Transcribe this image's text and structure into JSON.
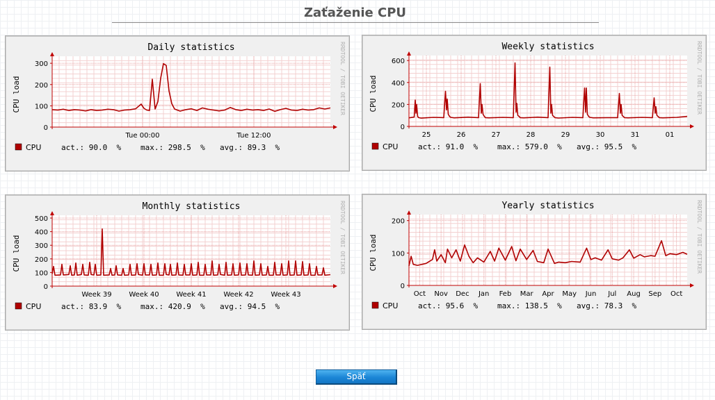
{
  "page": {
    "title": "Zaťaženie CPU"
  },
  "watermark": "RRDTOOL / TOBI OETIKER",
  "back_button": {
    "label": "Späť"
  },
  "chart_data": [
    {
      "id": "daily",
      "type": "line",
      "title": "Daily statistics",
      "ylabel": "CPU load",
      "ylim": [
        0,
        320
      ],
      "yticks": [
        0,
        100,
        200,
        300
      ],
      "xlim": [
        0,
        100
      ],
      "xticks": [
        {
          "x": 32.5,
          "label": "Tue 00:00"
        },
        {
          "x": 72.5,
          "label": "Tue 12:00"
        }
      ],
      "grid": true,
      "color": "#b00000",
      "series": [
        {
          "name": "CPU",
          "x": [
            0,
            2,
            4,
            6,
            8,
            10,
            12,
            14,
            16,
            18,
            20,
            22,
            24,
            26,
            28,
            30,
            32,
            33,
            34,
            35,
            36,
            37,
            38,
            39,
            40,
            41,
            42,
            43,
            44,
            46,
            48,
            50,
            52,
            54,
            56,
            58,
            60,
            62,
            64,
            66,
            68,
            70,
            72,
            74,
            76,
            78,
            80,
            82,
            84,
            86,
            88,
            90,
            92,
            94,
            96,
            98,
            100
          ],
          "y": [
            82,
            80,
            84,
            78,
            82,
            80,
            76,
            82,
            78,
            80,
            84,
            82,
            75,
            80,
            82,
            86,
            108,
            88,
            80,
            78,
            225,
            85,
            120,
            230,
            298,
            290,
            170,
            110,
            85,
            75,
            82,
            86,
            78,
            90,
            84,
            80,
            76,
            80,
            92,
            82,
            78,
            84,
            80,
            82,
            78,
            85,
            74,
            82,
            88,
            80,
            78,
            84,
            80,
            82,
            90,
            85,
            90
          ]
        }
      ],
      "legend": {
        "name": "CPU",
        "act": "90.0",
        "max": "298.5",
        "avg": "89.3",
        "unit": "%"
      }
    },
    {
      "id": "weekly",
      "type": "line",
      "title": "Weekly statistics",
      "ylabel": "CPU load",
      "ylim": [
        0,
        620
      ],
      "yticks": [
        0,
        200,
        400,
        600
      ],
      "xlim": [
        0,
        8
      ],
      "xticks": [
        {
          "x": 0.5,
          "label": "25"
        },
        {
          "x": 1.5,
          "label": "26"
        },
        {
          "x": 2.5,
          "label": "27"
        },
        {
          "x": 3.5,
          "label": "28"
        },
        {
          "x": 4.5,
          "label": "29"
        },
        {
          "x": 5.5,
          "label": "30"
        },
        {
          "x": 6.5,
          "label": "31"
        },
        {
          "x": 7.5,
          "label": "01"
        }
      ],
      "grid": true,
      "color": "#b00000",
      "series": [
        {
          "name": "CPU",
          "x": [
            0,
            0.15,
            0.18,
            0.2,
            0.22,
            0.25,
            0.28,
            0.35,
            0.7,
            1.0,
            1.05,
            1.08,
            1.1,
            1.13,
            1.17,
            1.2,
            1.3,
            1.7,
            2.0,
            2.05,
            2.08,
            2.1,
            2.13,
            2.17,
            2.2,
            2.3,
            2.7,
            3.0,
            3.05,
            3.08,
            3.1,
            3.13,
            3.17,
            3.2,
            3.3,
            3.7,
            4.0,
            4.05,
            4.08,
            4.1,
            4.13,
            4.17,
            4.2,
            4.3,
            4.7,
            5.0,
            5.05,
            5.08,
            5.1,
            5.13,
            5.17,
            5.2,
            5.3,
            5.7,
            6.0,
            6.05,
            6.08,
            6.1,
            6.13,
            6.17,
            6.2,
            6.3,
            6.7,
            7.0,
            7.05,
            7.08,
            7.1,
            7.13,
            7.17,
            7.2,
            7.3,
            7.7,
            8.0
          ],
          "y": [
            78,
            85,
            240,
            120,
            200,
            90,
            80,
            75,
            82,
            80,
            320,
            150,
            250,
            110,
            90,
            82,
            78,
            84,
            80,
            390,
            120,
            200,
            110,
            90,
            80,
            78,
            82,
            80,
            579,
            130,
            210,
            100,
            90,
            80,
            78,
            84,
            80,
            540,
            120,
            200,
            100,
            88,
            80,
            76,
            82,
            80,
            350,
            130,
            350,
            110,
            90,
            82,
            78,
            80,
            80,
            300,
            120,
            200,
            100,
            88,
            80,
            78,
            82,
            80,
            260,
            120,
            180,
            100,
            88,
            80,
            78,
            82,
            91
          ]
        }
      ],
      "legend": {
        "name": "CPU",
        "act": "91.0",
        "max": "579.0",
        "avg": "95.5",
        "unit": "%"
      }
    },
    {
      "id": "monthly",
      "type": "line",
      "title": "Monthly statistics",
      "ylabel": "CPU load",
      "ylim": [
        0,
        500
      ],
      "yticks": [
        0,
        100,
        200,
        300,
        400,
        500
      ],
      "xlim": [
        0,
        100
      ],
      "xticks": [
        {
          "x": 16,
          "label": "Week 39"
        },
        {
          "x": 33,
          "label": "Week 40"
        },
        {
          "x": 50,
          "label": "Week 41"
        },
        {
          "x": 67,
          "label": "Week 42"
        },
        {
          "x": 84,
          "label": "Week 43"
        }
      ],
      "grid": true,
      "color": "#b00000",
      "series": [
        {
          "name": "CPU",
          "x": [
            0,
            0.5,
            1,
            3,
            3.5,
            4,
            6,
            6.5,
            7,
            8,
            8.5,
            9,
            10.5,
            11,
            11.5,
            13,
            13.5,
            14,
            15,
            15.5,
            16,
            17.5,
            18,
            18.5,
            20.5,
            21,
            21.5,
            22.5,
            23,
            23.5,
            25,
            25.5,
            26,
            27.5,
            28,
            28.5,
            30,
            30.5,
            31,
            32.5,
            33,
            33.5,
            35,
            35.5,
            36,
            37.5,
            38,
            38.5,
            40,
            40.5,
            41,
            42,
            42.5,
            43,
            44.5,
            45,
            45.5,
            47,
            47.5,
            48,
            49.5,
            50,
            50.5,
            52,
            52.5,
            53,
            54.5,
            55,
            55.5,
            57,
            57.5,
            58,
            59.5,
            60,
            60.5,
            62,
            62.5,
            63,
            64.5,
            65,
            65.5,
            67,
            67.5,
            68,
            69.5,
            70,
            70.5,
            72,
            72.5,
            73,
            74.5,
            75,
            75.5,
            77,
            77.5,
            78,
            79.5,
            80,
            80.5,
            82,
            82.5,
            83,
            84.5,
            85,
            85.5,
            87,
            87.5,
            88,
            89.5,
            90,
            90.5,
            92,
            92.5,
            93,
            94.5,
            95,
            95.5,
            97,
            97.5,
            98,
            100
          ],
          "y": [
            90,
            145,
            80,
            82,
            160,
            82,
            85,
            150,
            80,
            82,
            170,
            80,
            85,
            160,
            82,
            80,
            175,
            85,
            82,
            160,
            80,
            82,
            420,
            80,
            82,
            130,
            80,
            82,
            150,
            82,
            80,
            130,
            80,
            82,
            160,
            80,
            82,
            165,
            85,
            80,
            165,
            82,
            82,
            160,
            80,
            82,
            170,
            80,
            80,
            165,
            85,
            82,
            160,
            80,
            82,
            170,
            82,
            80,
            160,
            82,
            82,
            165,
            80,
            82,
            175,
            80,
            80,
            160,
            82,
            82,
            185,
            80,
            82,
            160,
            85,
            80,
            175,
            80,
            82,
            165,
            80,
            82,
            170,
            80,
            82,
            165,
            82,
            80,
            185,
            80,
            82,
            165,
            80,
            82,
            145,
            80,
            80,
            175,
            82,
            82,
            165,
            80,
            82,
            185,
            80,
            82,
            185,
            80,
            82,
            180,
            80,
            82,
            165,
            80,
            80,
            145,
            82,
            82,
            135,
            80,
            84
          ]
        }
      ],
      "legend": {
        "name": "CPU",
        "act": "83.9",
        "max": "420.9",
        "avg": "94.5",
        "unit": "%"
      }
    },
    {
      "id": "yearly",
      "type": "line",
      "title": "Yearly statistics",
      "ylabel": "CPU load",
      "ylim": [
        0,
        210
      ],
      "yticks": [
        0,
        100,
        200
      ],
      "xlim": [
        0,
        13
      ],
      "xticks": [
        {
          "x": 0.5,
          "label": "Oct"
        },
        {
          "x": 1.5,
          "label": "Nov"
        },
        {
          "x": 2.5,
          "label": "Dec"
        },
        {
          "x": 3.5,
          "label": "Jan"
        },
        {
          "x": 4.5,
          "label": "Feb"
        },
        {
          "x": 5.5,
          "label": "Mar"
        },
        {
          "x": 6.5,
          "label": "Apr"
        },
        {
          "x": 7.5,
          "label": "May"
        },
        {
          "x": 8.5,
          "label": "Jun"
        },
        {
          "x": 9.5,
          "label": "Jul"
        },
        {
          "x": 10.5,
          "label": "Aug"
        },
        {
          "x": 11.5,
          "label": "Sep"
        },
        {
          "x": 12.5,
          "label": "Oct"
        }
      ],
      "grid": true,
      "color": "#b00000",
      "series": [
        {
          "name": "CPU",
          "x": [
            0,
            0.1,
            0.2,
            0.4,
            0.8,
            1.1,
            1.2,
            1.3,
            1.5,
            1.7,
            1.8,
            2.0,
            2.2,
            2.4,
            2.6,
            2.8,
            3.0,
            3.2,
            3.5,
            3.8,
            4.0,
            4.2,
            4.5,
            4.8,
            5.0,
            5.2,
            5.5,
            5.8,
            6.0,
            6.3,
            6.5,
            6.8,
            7.0,
            7.3,
            7.6,
            8.0,
            8.3,
            8.5,
            8.7,
            9.0,
            9.3,
            9.5,
            9.8,
            10.0,
            10.3,
            10.5,
            10.8,
            11.0,
            11.3,
            11.5,
            11.8,
            12.0,
            12.2,
            12.5,
            12.8,
            13.0
          ],
          "y": [
            60,
            90,
            65,
            62,
            68,
            80,
            110,
            75,
            95,
            70,
            112,
            85,
            110,
            75,
            125,
            90,
            70,
            85,
            72,
            105,
            75,
            115,
            78,
            120,
            76,
            112,
            80,
            108,
            74,
            70,
            112,
            68,
            72,
            70,
            74,
            72,
            115,
            80,
            85,
            78,
            110,
            82,
            78,
            85,
            110,
            84,
            95,
            88,
            92,
            90,
            138,
            92,
            98,
            95,
            102,
            96
          ]
        }
      ],
      "legend": {
        "name": "CPU",
        "act": "95.6",
        "max": "138.5",
        "avg": "78.3",
        "unit": "%"
      }
    }
  ]
}
